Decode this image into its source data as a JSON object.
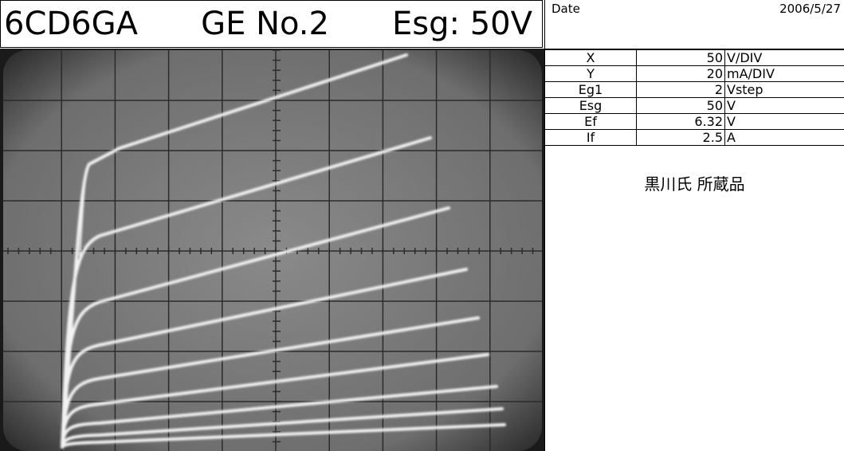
{
  "header": {
    "title": [
      "6CD6GA",
      "GE No.2",
      "Esg: 50V"
    ],
    "date_label": "Date",
    "date": "2006/5/27"
  },
  "table": {
    "rows": [
      [
        "X",
        "50",
        "V/DIV"
      ],
      [
        "Y",
        "20",
        "mA/DIV"
      ],
      [
        "Eg1",
        "2",
        "Vstep"
      ],
      [
        "Esg",
        "50",
        "V"
      ],
      [
        "Ef",
        "6.32",
        "V"
      ],
      [
        "If",
        "2.5",
        "A"
      ]
    ]
  },
  "note": "黒川氏 所蔵品"
}
